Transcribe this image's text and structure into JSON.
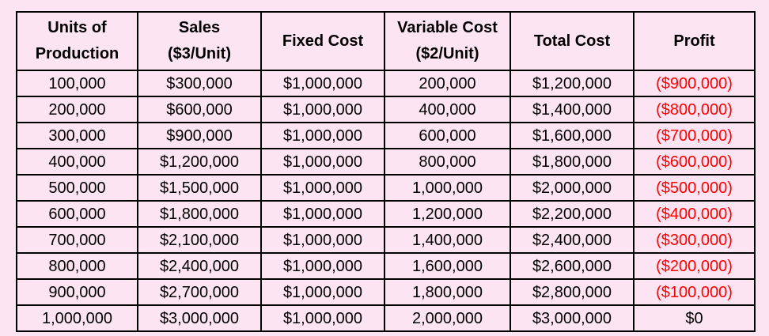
{
  "chart_data": {
    "type": "table",
    "columns": [
      [
        "Units of",
        "Production"
      ],
      [
        "Sales",
        "($3/Unit)"
      ],
      [
        "Fixed Cost"
      ],
      [
        "Variable Cost",
        "($2/Unit)"
      ],
      [
        "Total Cost"
      ],
      [
        "Profit"
      ]
    ],
    "rows": [
      [
        "100,000",
        "$300,000",
        "$1,000,000",
        "200,000",
        "$1,200,000",
        "($900,000)"
      ],
      [
        "200,000",
        "$600,000",
        "$1,000,000",
        "400,000",
        "$1,400,000",
        "($800,000)"
      ],
      [
        "300,000",
        "$900,000",
        "$1,000,000",
        "600,000",
        "$1,600,000",
        "($700,000)"
      ],
      [
        "400,000",
        "$1,200,000",
        "$1,000,000",
        "800,000",
        "$1,800,000",
        "($600,000)"
      ],
      [
        "500,000",
        "$1,500,000",
        "$1,000,000",
        "1,000,000",
        "$2,000,000",
        "($500,000)"
      ],
      [
        "600,000",
        "$1,800,000",
        "$1,000,000",
        "1,200,000",
        "$2,200,000",
        "($400,000)"
      ],
      [
        "700,000",
        "$2,100,000",
        "$1,000,000",
        "1,400,000",
        "$2,400,000",
        "($300,000)"
      ],
      [
        "800,000",
        "$2,400,000",
        "$1,000,000",
        "1,600,000",
        "$2,600,000",
        "($200,000)"
      ],
      [
        "900,000",
        "$2,700,000",
        "$1,000,000",
        "1,800,000",
        "$2,800,000",
        "($100,000)"
      ],
      [
        "1,000,000",
        "$3,000,000",
        "$1,000,000",
        "2,000,000",
        "$3,000,000",
        "$0"
      ]
    ],
    "negative_color": "#ff0000",
    "background_color": "#fce4f2",
    "text_color": "#000000"
  }
}
